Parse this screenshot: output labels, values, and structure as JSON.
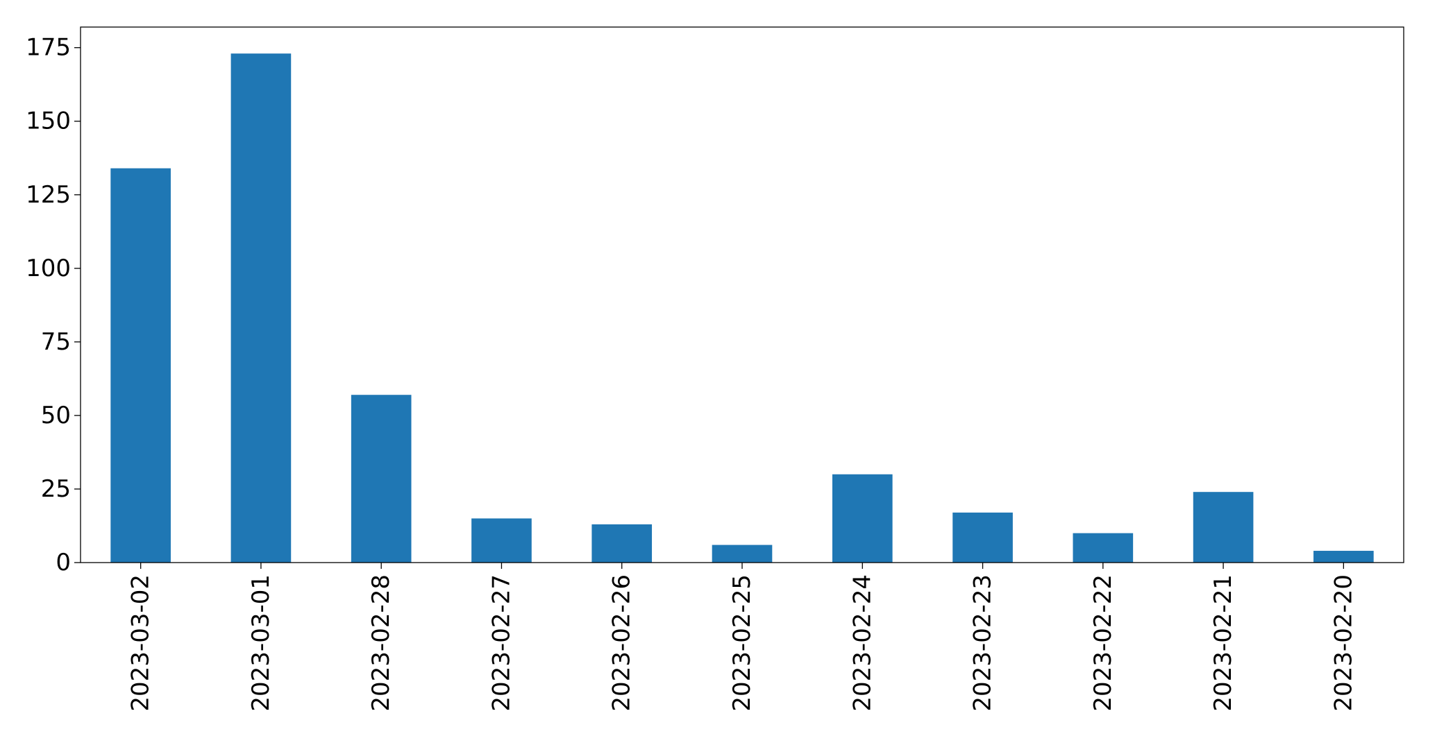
{
  "chart_data": {
    "type": "bar",
    "title": "",
    "xlabel": "",
    "ylabel": "",
    "categories": [
      "2023-03-02",
      "2023-03-01",
      "2023-02-28",
      "2023-02-27",
      "2023-02-26",
      "2023-02-25",
      "2023-02-24",
      "2023-02-23",
      "2023-02-22",
      "2023-02-21",
      "2023-02-20"
    ],
    "values": [
      134,
      173,
      57,
      15,
      13,
      6,
      30,
      17,
      10,
      24,
      4
    ],
    "ylim": [
      0,
      182
    ],
    "yticks": [
      0,
      25,
      50,
      75,
      100,
      125,
      150,
      175
    ],
    "bar_color": "#1f77b4",
    "grid": false,
    "legend": "none"
  }
}
